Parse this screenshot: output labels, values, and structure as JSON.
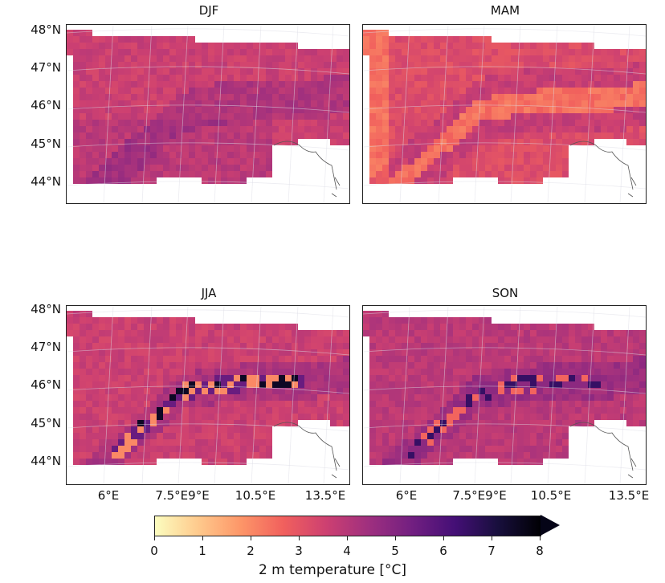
{
  "panels": [
    {
      "title": "DJF",
      "id": "djf"
    },
    {
      "title": "MAM",
      "id": "mam"
    },
    {
      "title": "JJA",
      "id": "jja"
    },
    {
      "title": "SON",
      "id": "son"
    }
  ],
  "lat_labels": [
    "48°N",
    "47°N",
    "46°N",
    "45°N",
    "44°N"
  ],
  "lon_labels": [
    "6°E",
    "7.5°E9°E",
    "10.5°E",
    "13.5°E"
  ],
  "colorbar": {
    "label": "2 m temperature [°C]",
    "ticks": [
      "0",
      "1",
      "2",
      "3",
      "4",
      "5",
      "6",
      "7",
      "8"
    ],
    "min": 0,
    "max": 8,
    "extend": "max",
    "colormap": "magma_r",
    "colors": [
      "#fcfdbf",
      "#feca8d",
      "#fd9668",
      "#f1605d",
      "#cd4071",
      "#9e2f7f",
      "#721f81",
      "#440f76",
      "#180f3d",
      "#000004"
    ]
  },
  "chart_data": [
    {
      "type": "heatmap",
      "season": "DJF",
      "title": "DJF",
      "dominant_value_degC": 3.6,
      "range_degC": [
        2.8,
        4.6
      ]
    },
    {
      "type": "heatmap",
      "season": "MAM",
      "title": "MAM",
      "dominant_value_degC": 3.2,
      "range_degC": [
        2.2,
        4.4
      ]
    },
    {
      "type": "heatmap",
      "season": "JJA",
      "title": "JJA",
      "dominant_value_degC": 3.6,
      "range_degC": [
        1.8,
        8.0
      ]
    },
    {
      "type": "heatmap",
      "season": "SON",
      "title": "SON",
      "dominant_value_degC": 3.9,
      "range_degC": [
        2.2,
        7.5
      ]
    }
  ]
}
